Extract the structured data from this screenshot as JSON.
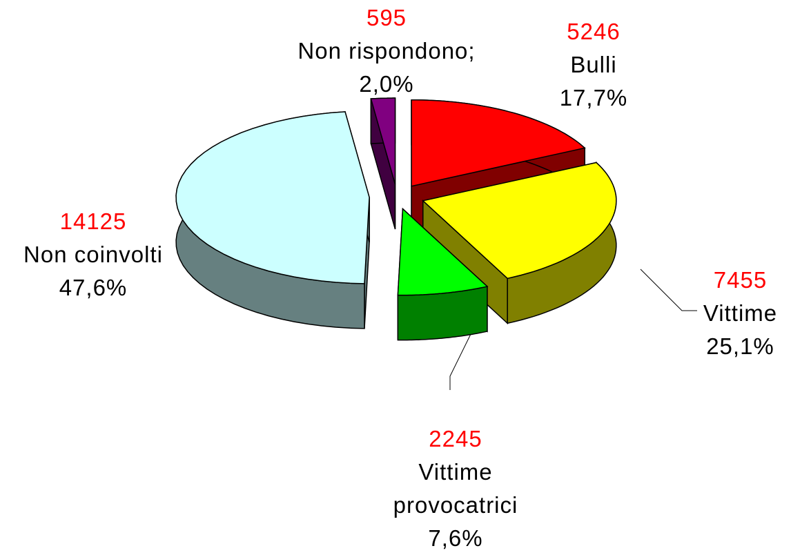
{
  "chart_data": {
    "type": "pie",
    "categories": [
      "Bulli",
      "Vittime",
      "Vittime provocatrici",
      "Non coinvolti",
      "Non rispondono;"
    ],
    "values": [
      17.7,
      25.1,
      7.6,
      47.6,
      2.0
    ],
    "value_labels": [
      "17,7%",
      "25,1%",
      "7,6%",
      "47,6%",
      "2,0%"
    ],
    "counts": [
      5246,
      7455,
      2245,
      14125,
      595
    ],
    "colors": [
      "#ff0000",
      "#ffff00",
      "#00ff00",
      "#ccffff",
      "#800080"
    ]
  }
}
